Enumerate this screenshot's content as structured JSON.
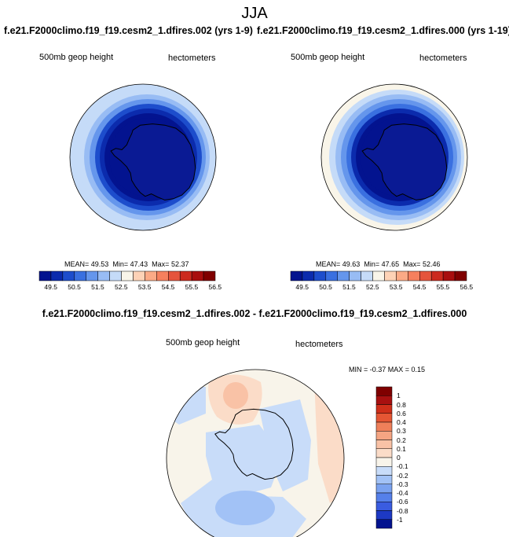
{
  "figure": {
    "season": "JJA",
    "case_a_title": "f.e21.F2000climo.f19_f19.cesm2_1.dfires.002 (yrs 1-9)",
    "case_b_title": "f.e21.F2000climo.f19_f19.cesm2_1.dfires.000 (yrs 1-19)",
    "diff_title": "f.e21.F2000climo.f19_f19.cesm2_1.dfires.002 - f.e21.F2000climo.f19_f19.cesm2_1.dfires.000"
  },
  "colors": {
    "abs_scale": [
      "#03138f",
      "#0b2bad",
      "#1d4dcc",
      "#3a70e0",
      "#6596ec",
      "#98bcf4",
      "#c5dbf8",
      "#f9f5e9",
      "#fdd2b6",
      "#fbaa86",
      "#f5805e",
      "#e5543c",
      "#cc2a1e",
      "#a80e0e",
      "#800000"
    ],
    "diff_scale": [
      "#03138f",
      "#1d39c4",
      "#3a5ce0",
      "#5580ea",
      "#7aa2f0",
      "#a2c2f6",
      "#c8dcf9",
      "#f8f4ea",
      "#fbdcc8",
      "#f9c2a6",
      "#f5a583",
      "#ef805a",
      "#e55634",
      "#cf2f1a",
      "#a81010",
      "#7f0000"
    ],
    "continent_ice": "#0a1a94",
    "continent_outline": "#000000"
  },
  "chart_data": [
    {
      "type": "heatmap",
      "projection": "south-polar-stereographic",
      "panel": "top-left",
      "variable_label": "500mb geop height",
      "units_label": "hectometers",
      "stats": {
        "mean_label": "MEAN=",
        "mean": "49.53",
        "min_label": "Min=",
        "min": "47.43",
        "max_label": "Max=",
        "max": "52.37"
      },
      "colorbar_ticks": [
        "49.5",
        "50.5",
        "51.5",
        "52.5",
        "53.5",
        "54.5",
        "55.5",
        "56.5"
      ],
      "colorbar_levels": [
        49.5,
        50,
        50.5,
        51,
        51.5,
        52,
        52.5,
        53,
        53.5,
        54,
        54.5,
        55,
        55.5,
        56,
        56.5
      ],
      "colorbar_orientation": "horizontal",
      "field_rings": [
        52.4,
        52.2,
        51.8,
        51.2,
        50.4,
        49.6,
        49.0,
        48.0
      ]
    },
    {
      "type": "heatmap",
      "projection": "south-polar-stereographic",
      "panel": "top-right",
      "variable_label": "500mb geop height",
      "units_label": "hectometers",
      "stats": {
        "mean_label": "MEAN=",
        "mean": "49.63",
        "min_label": "Min=",
        "min": "47.65",
        "max_label": "Max=",
        "max": "52.46"
      },
      "colorbar_ticks": [
        "49.5",
        "50.5",
        "51.5",
        "52.5",
        "53.5",
        "54.5",
        "55.5",
        "56.5"
      ],
      "colorbar_levels": [
        49.5,
        50,
        50.5,
        51,
        51.5,
        52,
        52.5,
        53,
        53.5,
        54,
        54.5,
        55,
        55.5,
        56,
        56.5
      ],
      "colorbar_orientation": "horizontal",
      "field_rings": [
        52.5,
        52.3,
        51.9,
        51.3,
        50.5,
        49.7,
        49.1,
        48.1
      ]
    },
    {
      "type": "heatmap",
      "projection": "south-polar-stereographic",
      "panel": "bottom-difference",
      "variable_label": "500mb geop height",
      "units_label": "hectometers",
      "stats_text": "MIN = -0.37 MAX =  0.15",
      "colorbar_ticks": [
        "1",
        "0.8",
        "0.6",
        "0.4",
        "0.3",
        "0.2",
        "0.1",
        "0",
        "-0.1",
        "-0.2",
        "-0.3",
        "-0.4",
        "-0.6",
        "-0.8",
        "-1"
      ],
      "colorbar_levels": [
        -1,
        -0.8,
        -0.6,
        -0.4,
        -0.3,
        -0.2,
        -0.1,
        0,
        0.1,
        0.2,
        0.3,
        0.4,
        0.6,
        0.8,
        1
      ],
      "colorbar_orientation": "vertical",
      "field_background": -0.05,
      "anomalies": [
        {
          "region": "pacific-sector-lower-left",
          "value": -0.05
        },
        {
          "region": "atlantic-sector-right",
          "value": 0.05
        },
        {
          "region": "bellingshausen-upper-center",
          "value": 0.05
        },
        {
          "region": "bellingshausen-core",
          "value": 0.15
        },
        {
          "region": "west-antarctica",
          "value": -0.15
        },
        {
          "region": "south-pacific-lower",
          "value": -0.15
        },
        {
          "region": "southern-ocean-core",
          "value": -0.3
        },
        {
          "region": "east-antarctica",
          "value": -0.15
        },
        {
          "region": "upper-left-sector",
          "value": -0.15
        }
      ]
    }
  ]
}
